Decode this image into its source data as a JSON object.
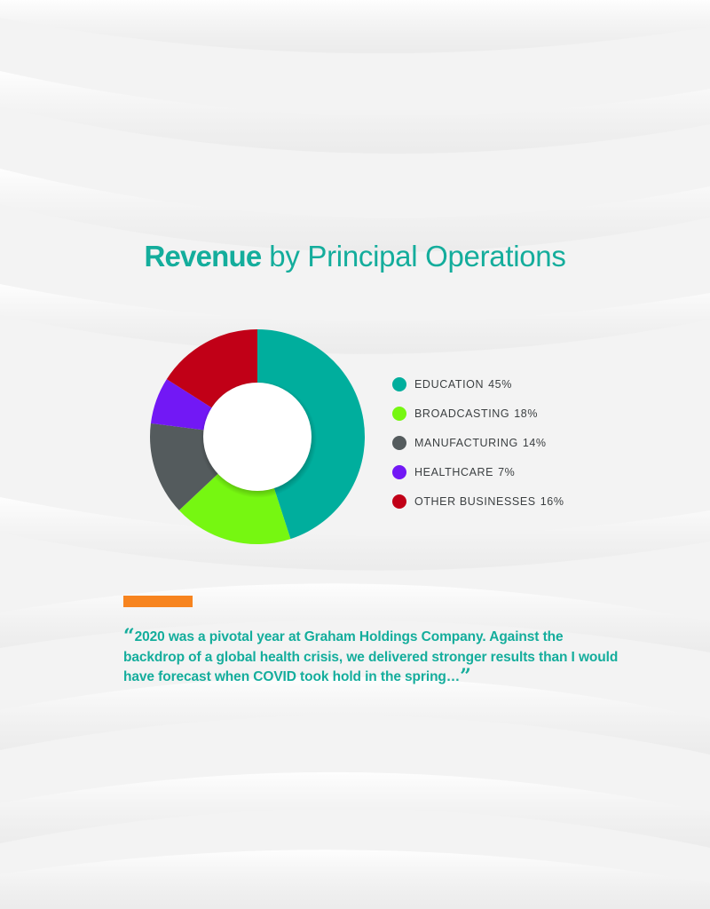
{
  "title": {
    "bold": "Revenue",
    "light": "by Principal Operations"
  },
  "chart_data": {
    "type": "pie",
    "donut": true,
    "title": "Revenue by Principal Operations",
    "legend_position": "right",
    "slices": [
      {
        "label": "EDUCATION",
        "value": 45,
        "pct_text": "45%",
        "color": "#00ae9d"
      },
      {
        "label": "BROADCASTING",
        "value": 18,
        "pct_text": "18%",
        "color": "#76f711"
      },
      {
        "label": "MANUFACTURING",
        "value": 14,
        "pct_text": "14%",
        "color": "#545b5d"
      },
      {
        "label": "HEALTHCARE",
        "value": 7,
        "pct_text": "7%",
        "color": "#7218f5"
      },
      {
        "label": "OTHER BUSINESSES",
        "value": 16,
        "pct_text": "16%",
        "color": "#c10017"
      }
    ]
  },
  "accent_color": "#f7841f",
  "quote": {
    "open_mark": "“",
    "text": "2020 was a pivotal year at Graham Holdings Company. Against the backdrop of a global health crisis, we delivered stronger results than I would have forecast when COVID took hold in the spring…",
    "close_mark": "”"
  }
}
